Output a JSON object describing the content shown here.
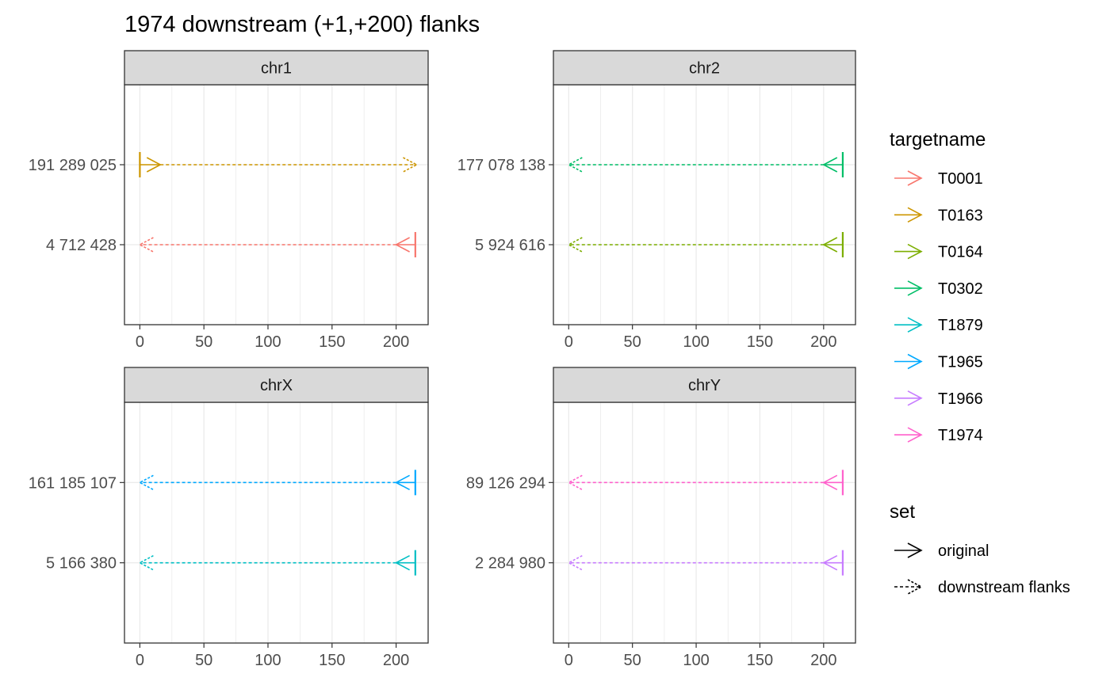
{
  "chart_data": {
    "type": "faceted segment plot",
    "title": "1974 downstream (+1,+200) flanks",
    "xlim": [
      -12,
      225
    ],
    "x_ticks": [
      0,
      50,
      100,
      150,
      200
    ],
    "x_tick_labels": [
      "0",
      "50",
      "100",
      "150",
      "200"
    ],
    "grid": true,
    "colors": {
      "T0001": "#F8766D",
      "T0163": "#CD9600",
      "T0164": "#7CAE00",
      "T0302": "#00BE67",
      "T1879": "#00BFC4",
      "T1965": "#00A9FF",
      "T1966": "#C77CFF",
      "T1974": "#FF61CC"
    },
    "panels": [
      {
        "name": "chr1",
        "y_labels": [
          "4 712 428",
          "191 289 025"
        ],
        "segments": [
          {
            "target": "T0163",
            "y": "191 289 025",
            "set": "original",
            "x_start": 0,
            "x_end": 16
          },
          {
            "target": "T0163",
            "y": "191 289 025",
            "set": "downstream flanks",
            "x_start": 16,
            "x_end": 216
          },
          {
            "target": "T0001",
            "y": "4 712 428",
            "set": "original",
            "x_start": 215,
            "x_end": 200
          },
          {
            "target": "T0001",
            "y": "4 712 428",
            "set": "downstream flanks",
            "x_start": 200,
            "x_end": 0
          }
        ]
      },
      {
        "name": "chr2",
        "y_labels": [
          "5 924 616",
          "177 078 138"
        ],
        "segments": [
          {
            "target": "T0302",
            "y": "177 078 138",
            "set": "original",
            "x_start": 215,
            "x_end": 200
          },
          {
            "target": "T0302",
            "y": "177 078 138",
            "set": "downstream flanks",
            "x_start": 200,
            "x_end": 0
          },
          {
            "target": "T0164",
            "y": "5 924 616",
            "set": "original",
            "x_start": 215,
            "x_end": 200
          },
          {
            "target": "T0164",
            "y": "5 924 616",
            "set": "downstream flanks",
            "x_start": 200,
            "x_end": 0
          }
        ]
      },
      {
        "name": "chrX",
        "y_labels": [
          "5 166 380",
          "161 185 107"
        ],
        "segments": [
          {
            "target": "T1965",
            "y": "161 185 107",
            "set": "original",
            "x_start": 215,
            "x_end": 200
          },
          {
            "target": "T1965",
            "y": "161 185 107",
            "set": "downstream flanks",
            "x_start": 200,
            "x_end": 0
          },
          {
            "target": "T1879",
            "y": "5 166 380",
            "set": "original",
            "x_start": 215,
            "x_end": 200
          },
          {
            "target": "T1879",
            "y": "5 166 380",
            "set": "downstream flanks",
            "x_start": 200,
            "x_end": 0
          }
        ]
      },
      {
        "name": "chrY",
        "y_labels": [
          "2 284 980",
          "89 126 294"
        ],
        "segments": [
          {
            "target": "T1974",
            "y": "89 126 294",
            "set": "original",
            "x_start": 215,
            "x_end": 200
          },
          {
            "target": "T1974",
            "y": "89 126 294",
            "set": "downstream flanks",
            "x_start": 200,
            "x_end": 0
          },
          {
            "target": "T1966",
            "y": "2 284 980",
            "set": "original",
            "x_start": 215,
            "x_end": 200
          },
          {
            "target": "T1966",
            "y": "2 284 980",
            "set": "downstream flanks",
            "x_start": 200,
            "x_end": 0
          }
        ]
      }
    ],
    "legends": [
      {
        "title": "targetname",
        "entries": [
          "T0001",
          "T0163",
          "T0164",
          "T0302",
          "T1879",
          "T1965",
          "T1966",
          "T1974"
        ]
      },
      {
        "title": "set",
        "entries": [
          "original",
          "downstream flanks"
        ]
      }
    ],
    "legend_position": "right"
  }
}
